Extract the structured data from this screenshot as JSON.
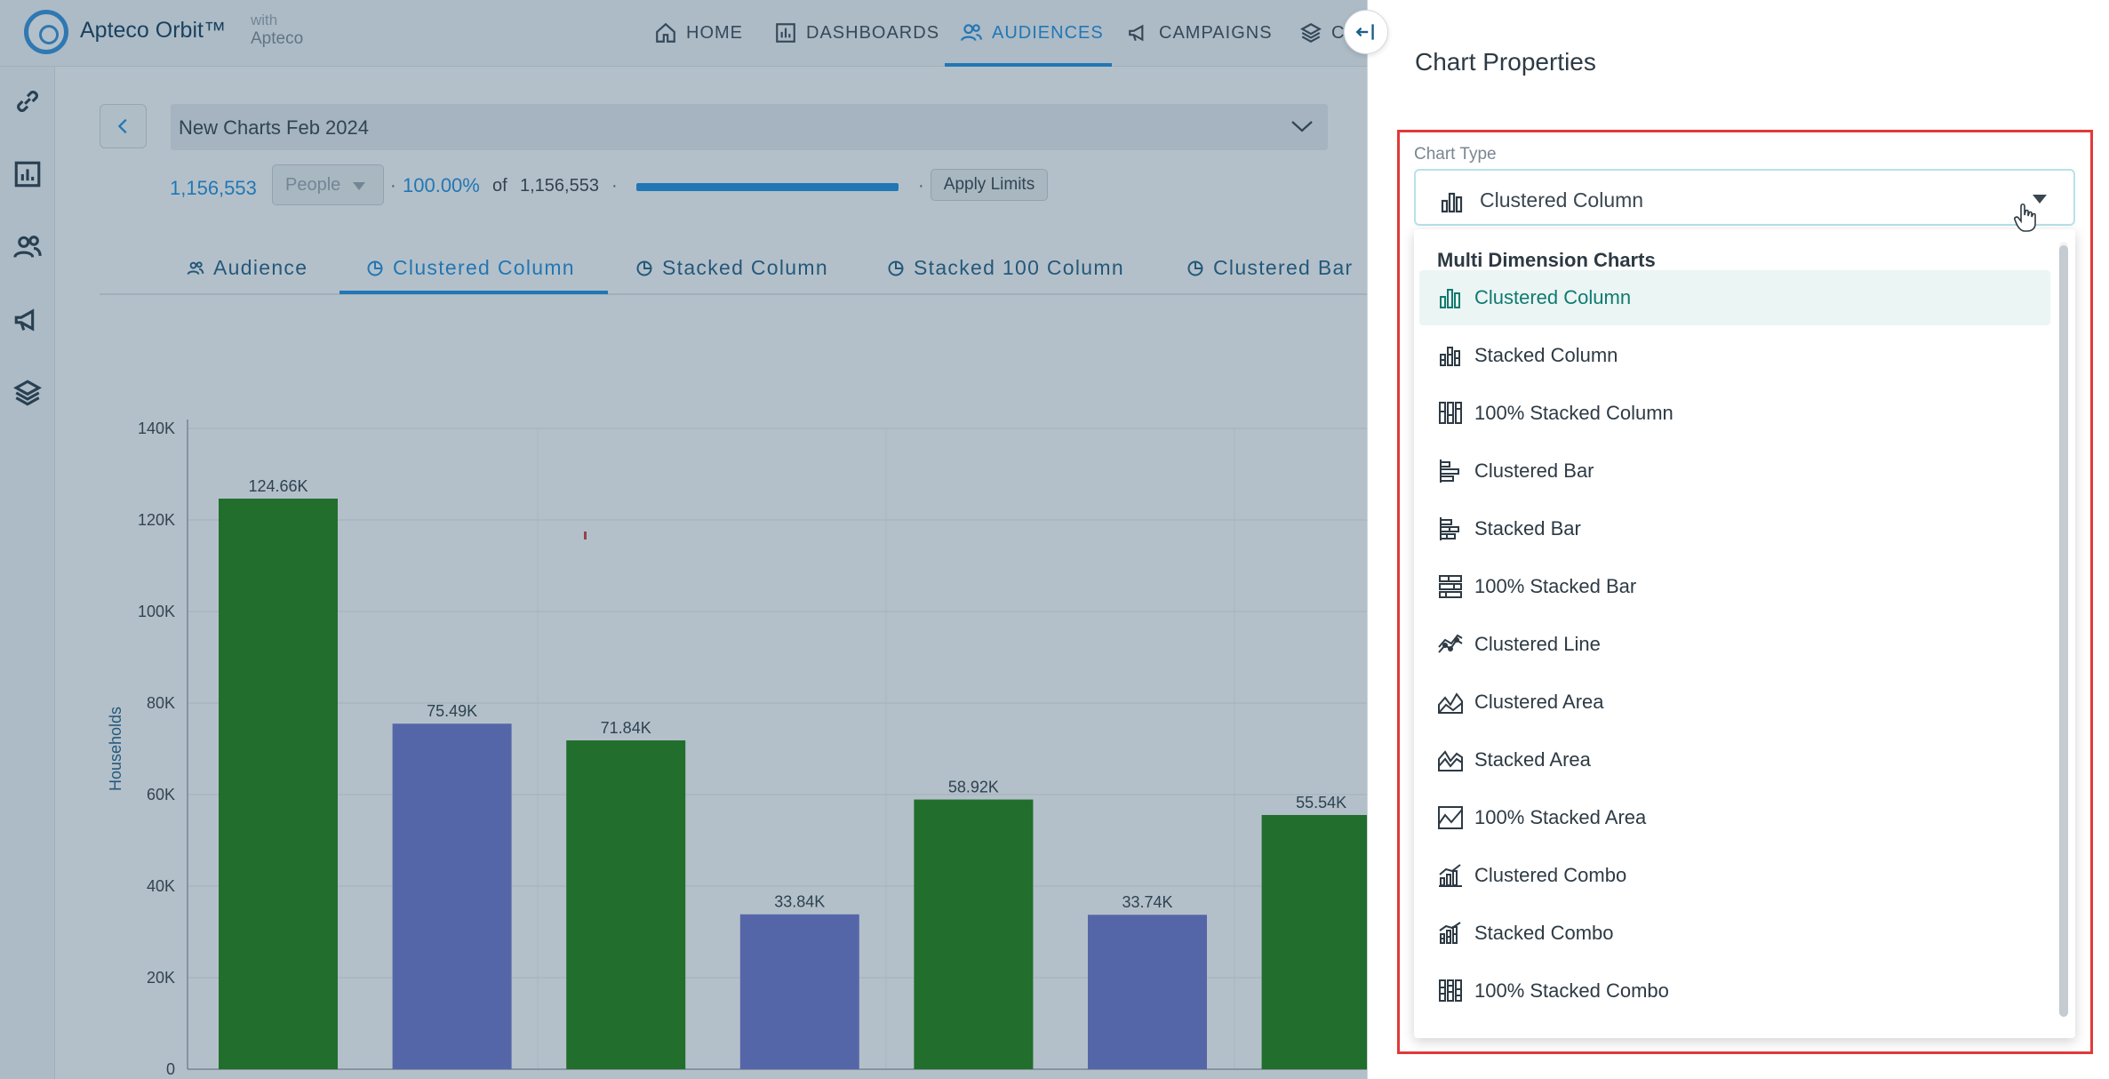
{
  "topbar": {
    "brand": "Apteco Orbit™",
    "brand_with": "with",
    "brand_sub": "Apteco",
    "nav": [
      {
        "label": "HOME",
        "icon": "home-icon"
      },
      {
        "label": "DASHBOARDS",
        "icon": "dashboard-icon"
      },
      {
        "label": "AUDIENCES",
        "icon": "audiences-icon",
        "active": true
      },
      {
        "label": "CAMPAIGNS",
        "icon": "megaphone-icon"
      },
      {
        "label": "C",
        "icon": "layers-icon"
      }
    ]
  },
  "sidebar": {
    "icons": [
      "link-icon",
      "chart-icon",
      "people-icon",
      "megaphone-icon",
      "layers-icon"
    ]
  },
  "audience": {
    "name": "New Charts Feb 2024",
    "count": "1,156,553",
    "unit": "People",
    "separator": "·",
    "percent": "100.00%",
    "of": "of",
    "total": "1,156,553",
    "progress": 1.0,
    "apply_limits": "Apply Limits"
  },
  "tabs": [
    {
      "label": "Audience",
      "icon": "people-icon"
    },
    {
      "label": "Clustered Column",
      "icon": "pie-icon",
      "active": true
    },
    {
      "label": "Stacked Column",
      "icon": "pie-icon"
    },
    {
      "label": "Stacked 100 Column",
      "icon": "pie-icon"
    },
    {
      "label": "Clustered Bar",
      "icon": "pie-icon"
    }
  ],
  "chart_data": {
    "type": "bar",
    "ylabel": "Households",
    "ylim": [
      0,
      140000
    ],
    "yticks": [
      0,
      20000,
      40000,
      60000,
      80000,
      100000,
      120000,
      140000
    ],
    "ytick_labels": [
      "0",
      "20K",
      "40K",
      "60K",
      "80K",
      "100K",
      "120K",
      "140K"
    ],
    "colors": [
      "#1a7f0b",
      "#6b73cc"
    ],
    "bars": [
      {
        "value": 124660,
        "label": "124.66K",
        "series": 0
      },
      {
        "value": 75490,
        "label": "75.49K",
        "series": 1
      },
      {
        "value": 71840,
        "label": "71.84K",
        "series": 0
      },
      {
        "value": 33840,
        "label": "33.84K",
        "series": 1
      },
      {
        "value": 58920,
        "label": "58.92K",
        "series": 0
      },
      {
        "value": 33740,
        "label": "33.74K",
        "series": 1
      },
      {
        "value": 55540,
        "label": "55.54K",
        "series": 0
      }
    ]
  },
  "panel": {
    "title": "Chart Properties",
    "field_label": "Chart Type",
    "selected": "Clustered Column",
    "group_header": "Multi Dimension Charts",
    "options": [
      {
        "label": "Clustered Column",
        "icon": "clustered-column-icon",
        "selected": true
      },
      {
        "label": "Stacked Column",
        "icon": "stacked-column-icon"
      },
      {
        "label": "100% Stacked Column",
        "icon": "stacked-100-column-icon"
      },
      {
        "label": "Clustered Bar",
        "icon": "clustered-bar-icon"
      },
      {
        "label": "Stacked Bar",
        "icon": "stacked-bar-icon"
      },
      {
        "label": "100% Stacked Bar",
        "icon": "stacked-100-bar-icon"
      },
      {
        "label": "Clustered Line",
        "icon": "clustered-line-icon"
      },
      {
        "label": "Clustered Area",
        "icon": "clustered-area-icon"
      },
      {
        "label": "Stacked Area",
        "icon": "stacked-area-icon"
      },
      {
        "label": "100% Stacked Area",
        "icon": "stacked-100-area-icon"
      },
      {
        "label": "Clustered Combo",
        "icon": "clustered-combo-icon"
      },
      {
        "label": "Stacked Combo",
        "icon": "stacked-combo-icon"
      },
      {
        "label": "100% Stacked Combo",
        "icon": "stacked-100-combo-icon"
      }
    ]
  }
}
